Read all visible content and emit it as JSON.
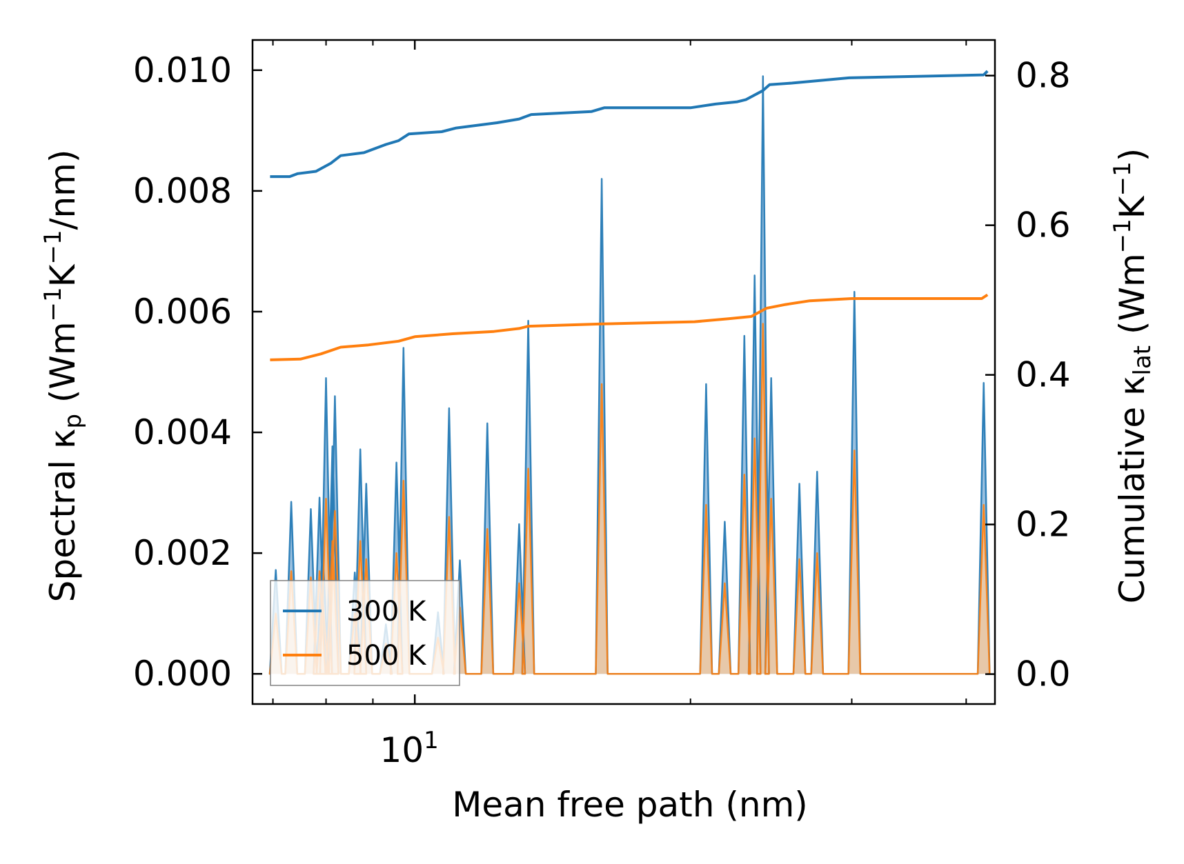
{
  "chart_data": {
    "type": "line",
    "title": "",
    "xlabel": "Mean free path (nm)",
    "ylabel_left": {
      "pre": "Spectral κ",
      "sub": "p",
      "post": " (Wm",
      "sup1": "−1",
      "mid": "K",
      "sup2": "−1",
      "end": "/nm)"
    },
    "ylabel_right": {
      "pre": "Cumulative κ",
      "sub": "lat",
      "post": " (Wm",
      "sup1": "−1",
      "mid": "K",
      "sup2": "−1",
      "end": ")"
    },
    "xscale": "log",
    "xlim": [
      6.65,
      43.0
    ],
    "ylim_left": [
      -0.0005,
      0.0105
    ],
    "ylim_right": [
      -0.04,
      0.8476
    ],
    "x_ticks": [
      {
        "value": 10,
        "base": "10",
        "exp": "1"
      }
    ],
    "y_ticks_left": [
      "0.000",
      "0.002",
      "0.004",
      "0.006",
      "0.008",
      "0.010"
    ],
    "y_ticks_left_values": [
      0,
      0.002,
      0.004,
      0.006,
      0.008,
      0.01
    ],
    "y_ticks_right": [
      "0.0",
      "0.2",
      "0.4",
      "0.6",
      "0.8"
    ],
    "y_ticks_right_values": [
      0,
      0.2,
      0.4,
      0.6,
      0.8
    ],
    "legend": {
      "position": "lower-left",
      "entries": [
        "300 K",
        "500 K"
      ]
    },
    "colors": {
      "s300": "#1f77b4",
      "s500": "#ff7f0e",
      "fill300": "#8fb9dc",
      "fill500": "#f4c9a0"
    },
    "spectral_series": [
      {
        "name": "300 K",
        "peaks": [
          [
            7.05,
            0.00172
          ],
          [
            7.33,
            0.00285
          ],
          [
            7.7,
            0.00273
          ],
          [
            7.87,
            0.00292
          ],
          [
            7.93,
            0.00207
          ],
          [
            8.0,
            0.0049
          ],
          [
            8.13,
            0.00377
          ],
          [
            8.18,
            0.0046
          ],
          [
            8.6,
            0.00168
          ],
          [
            8.72,
            0.00372
          ],
          [
            8.85,
            0.00315
          ],
          [
            9.3,
            0.00082
          ],
          [
            9.55,
            0.0035
          ],
          [
            9.72,
            0.0054
          ],
          [
            10.6,
            0.00102
          ],
          [
            10.9,
            0.0044
          ],
          [
            11.2,
            0.00188
          ],
          [
            12.0,
            0.00415
          ],
          [
            13.0,
            0.00248
          ],
          [
            13.3,
            0.00585
          ],
          [
            16.0,
            0.0082
          ],
          [
            20.8,
            0.0048
          ],
          [
            21.8,
            0.00252
          ],
          [
            22.9,
            0.0056
          ],
          [
            23.5,
            0.0066
          ],
          [
            24.0,
            0.0099
          ],
          [
            24.5,
            0.0049
          ],
          [
            26.3,
            0.00315
          ],
          [
            27.5,
            0.00335
          ],
          [
            30.2,
            0.00633
          ],
          [
            41.8,
            0.00482
          ]
        ]
      },
      {
        "name": "500 K",
        "peaks": [
          [
            7.05,
            0.001
          ],
          [
            7.33,
            0.0017
          ],
          [
            7.7,
            0.0016
          ],
          [
            7.87,
            0.0017
          ],
          [
            7.93,
            0.0012
          ],
          [
            8.0,
            0.0029
          ],
          [
            8.13,
            0.0022
          ],
          [
            8.18,
            0.0027
          ],
          [
            8.6,
            0.001
          ],
          [
            8.72,
            0.0022
          ],
          [
            8.85,
            0.0019
          ],
          [
            9.3,
            0.0005
          ],
          [
            9.55,
            0.002
          ],
          [
            9.72,
            0.0032
          ],
          [
            10.6,
            0.0006
          ],
          [
            10.9,
            0.0026
          ],
          [
            11.2,
            0.0011
          ],
          [
            12.0,
            0.0024
          ],
          [
            13.0,
            0.0015
          ],
          [
            13.3,
            0.0034
          ],
          [
            16.0,
            0.0048
          ],
          [
            20.8,
            0.0028
          ],
          [
            21.8,
            0.0015
          ],
          [
            22.9,
            0.0033
          ],
          [
            23.5,
            0.0039
          ],
          [
            24.0,
            0.0058
          ],
          [
            24.5,
            0.0029
          ],
          [
            26.3,
            0.0019
          ],
          [
            27.5,
            0.002
          ],
          [
            30.2,
            0.0037
          ],
          [
            41.8,
            0.0028
          ]
        ]
      }
    ],
    "cumulative_series": [
      {
        "name": "300 K",
        "points": [
          [
            6.95,
            0.665
          ],
          [
            7.3,
            0.665
          ],
          [
            7.45,
            0.669
          ],
          [
            7.8,
            0.672
          ],
          [
            8.1,
            0.683
          ],
          [
            8.3,
            0.693
          ],
          [
            8.8,
            0.697
          ],
          [
            9.3,
            0.708
          ],
          [
            9.6,
            0.713
          ],
          [
            9.85,
            0.722
          ],
          [
            10.7,
            0.725
          ],
          [
            11.1,
            0.73
          ],
          [
            12.3,
            0.737
          ],
          [
            13.0,
            0.742
          ],
          [
            13.4,
            0.748
          ],
          [
            15.6,
            0.752
          ],
          [
            16.1,
            0.757
          ],
          [
            20.0,
            0.757
          ],
          [
            21.3,
            0.762
          ],
          [
            22.5,
            0.765
          ],
          [
            23.0,
            0.768
          ],
          [
            24.0,
            0.78
          ],
          [
            24.4,
            0.788
          ],
          [
            25.8,
            0.79
          ],
          [
            29.8,
            0.797
          ],
          [
            41.8,
            0.801
          ],
          [
            42.2,
            0.806
          ]
        ]
      },
      {
        "name": "500 K",
        "points": [
          [
            6.95,
            0.42
          ],
          [
            7.5,
            0.421
          ],
          [
            7.9,
            0.428
          ],
          [
            8.3,
            0.437
          ],
          [
            8.9,
            0.44
          ],
          [
            9.6,
            0.445
          ],
          [
            10.0,
            0.451
          ],
          [
            11.0,
            0.455
          ],
          [
            12.2,
            0.458
          ],
          [
            13.0,
            0.462
          ],
          [
            13.3,
            0.465
          ],
          [
            16.0,
            0.468
          ],
          [
            20.2,
            0.471
          ],
          [
            22.0,
            0.475
          ],
          [
            23.3,
            0.478
          ],
          [
            24.2,
            0.489
          ],
          [
            25.4,
            0.494
          ],
          [
            27.0,
            0.499
          ],
          [
            30.0,
            0.502
          ],
          [
            41.6,
            0.502
          ],
          [
            42.2,
            0.507
          ]
        ]
      }
    ]
  }
}
